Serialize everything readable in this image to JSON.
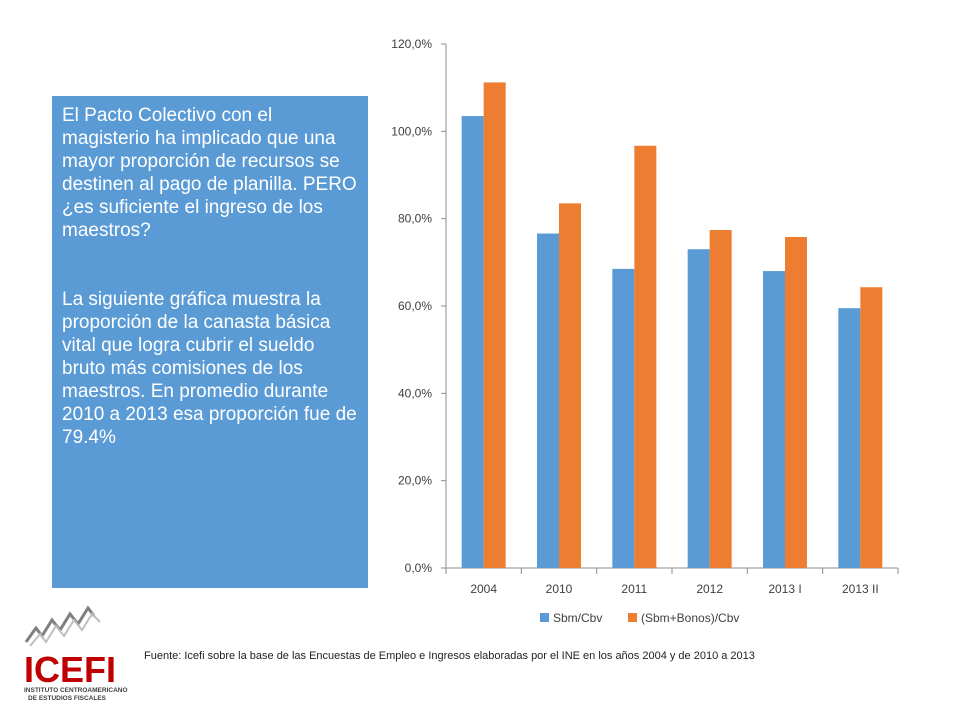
{
  "text_panel": {
    "paragraph1": "El Pacto Colectivo con el magisterio ha implicado que una mayor proporción de recursos se destinen al pago de planilla. PERO ¿es suficiente el ingreso de los maestros?",
    "paragraph2": "La siguiente gráfica muestra la proporción de la canasta básica vital que logra cubrir el sueldo bruto más comisiones de los maestros. En promedio durante 2010 a 2013 esa proporción fue de 79.4%"
  },
  "source": "Fuente: Icefi sobre la base de las Encuestas de Empleo e Ingresos elaboradas por el INE en los años 2004 y de 2010 a 2013",
  "logo": {
    "name": "ICEFI",
    "subtitle_line1": "INSTITUTO CENTROAMERICANO",
    "subtitle_line2": "DE ESTUDIOS FISCALES"
  },
  "chart_data": {
    "type": "bar",
    "categories": [
      "2004",
      "2010",
      "2011",
      "2012",
      "2013 I",
      "2013 II"
    ],
    "series": [
      {
        "name": "Sbm/Cbv",
        "values": [
          103.5,
          76.6,
          68.5,
          73.0,
          68.0,
          59.5
        ],
        "color": "#5b9bd5"
      },
      {
        "name": "(Sbm+Bonos)/Cbv",
        "values": [
          111.2,
          83.5,
          96.7,
          77.4,
          75.8,
          64.3
        ],
        "color": "#ed7d31"
      }
    ],
    "ylim": [
      0,
      120
    ],
    "yticks": [
      "0,0%",
      "20,0%",
      "40,0%",
      "60,0%",
      "80,0%",
      "100,0%",
      "120,0%"
    ],
    "legend_position": "bottom",
    "grid": false
  }
}
